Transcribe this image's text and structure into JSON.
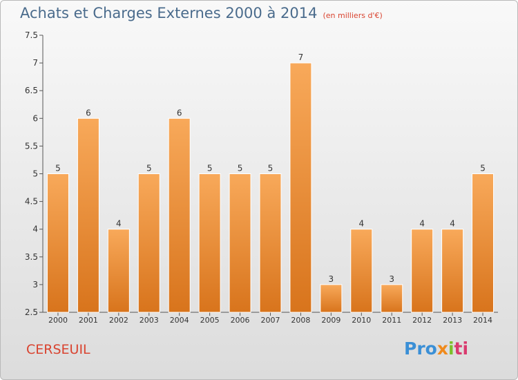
{
  "header": {
    "title": "Achats et Charges Externes 2000 à 2014",
    "unit_note": "(en milliers d'€)"
  },
  "footer": {
    "commune": "CERSEUIL",
    "brand": {
      "p1": "Pro",
      "p2": "x",
      "p3": "i",
      "p4": "ti"
    }
  },
  "colors": {
    "bar_top": "#f8a95a",
    "bar_bottom": "#d8741c",
    "title": "#4a6b8c",
    "accent": "#d9432f"
  },
  "chart_data": {
    "type": "bar",
    "title": "Achats et Charges Externes 2000 à 2014",
    "subtitle": "(en milliers d'€)",
    "categories": [
      "2000",
      "2001",
      "2002",
      "2003",
      "2004",
      "2005",
      "2006",
      "2007",
      "2008",
      "2009",
      "2010",
      "2011",
      "2012",
      "2013",
      "2014"
    ],
    "values": [
      5,
      6,
      4,
      5,
      6,
      5,
      5,
      5,
      7,
      3,
      4,
      3,
      4,
      4,
      5
    ],
    "ylim": [
      2.5,
      7.5
    ],
    "yticks": [
      "2.5",
      "3",
      "3.5",
      "4",
      "4.5",
      "5",
      "5.5",
      "6",
      "6.5",
      "7",
      "7.5"
    ],
    "xlabel": "",
    "ylabel": "",
    "grid": false,
    "legend": "none"
  }
}
